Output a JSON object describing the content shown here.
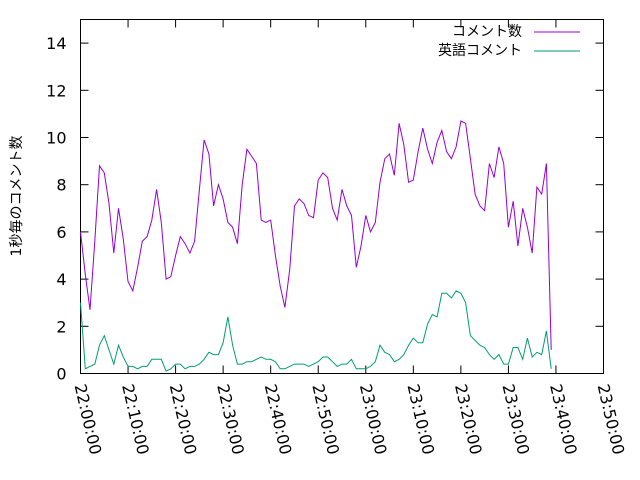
{
  "chart_data": {
    "type": "line",
    "ylabel": "1秒毎のコメント数",
    "xlabel": "",
    "ylim": [
      0,
      15
    ],
    "yticks": [
      0,
      2,
      4,
      6,
      8,
      10,
      12,
      14
    ],
    "xlim": [
      "22:00:00",
      "23:50:00"
    ],
    "xticks": [
      "22:00:00",
      "22:10:00",
      "22:20:00",
      "22:30:00",
      "22:40:00",
      "22:50:00",
      "23:00:00",
      "23:10:00",
      "23:20:00",
      "23:30:00",
      "23:40:00",
      "23:50:00"
    ],
    "grid": false,
    "legend": "top-right",
    "series": [
      {
        "name": "コメント数",
        "color": "#9400d3",
        "points": [
          [
            "22:00:00",
            6.0
          ],
          [
            "22:01:00",
            4.2
          ],
          [
            "22:02:00",
            2.7
          ],
          [
            "22:03:00",
            5.6
          ],
          [
            "22:04:00",
            8.8
          ],
          [
            "22:05:00",
            8.5
          ],
          [
            "22:06:00",
            7.2
          ],
          [
            "22:07:00",
            5.1
          ],
          [
            "22:08:00",
            7.0
          ],
          [
            "22:09:00",
            5.7
          ],
          [
            "22:10:00",
            3.9
          ],
          [
            "22:11:00",
            3.5
          ],
          [
            "22:12:00",
            4.5
          ],
          [
            "22:13:00",
            5.6
          ],
          [
            "22:14:00",
            5.8
          ],
          [
            "22:15:00",
            6.5
          ],
          [
            "22:16:00",
            7.8
          ],
          [
            "22:17:00",
            6.4
          ],
          [
            "22:18:00",
            4.0
          ],
          [
            "22:19:00",
            4.1
          ],
          [
            "22:20:00",
            5.0
          ],
          [
            "22:21:00",
            5.8
          ],
          [
            "22:22:00",
            5.5
          ],
          [
            "22:23:00",
            5.1
          ],
          [
            "22:24:00",
            5.6
          ],
          [
            "22:25:00",
            7.8
          ],
          [
            "22:26:00",
            9.9
          ],
          [
            "22:27:00",
            9.3
          ],
          [
            "22:28:00",
            7.1
          ],
          [
            "22:29:00",
            8.0
          ],
          [
            "22:30:00",
            7.4
          ],
          [
            "22:31:00",
            6.4
          ],
          [
            "22:32:00",
            6.2
          ],
          [
            "22:33:00",
            5.5
          ],
          [
            "22:34:00",
            8.0
          ],
          [
            "22:35:00",
            9.5
          ],
          [
            "22:36:00",
            9.2
          ],
          [
            "22:37:00",
            8.9
          ],
          [
            "22:38:00",
            6.5
          ],
          [
            "22:39:00",
            6.4
          ],
          [
            "22:40:00",
            6.5
          ],
          [
            "22:41:00",
            5.0
          ],
          [
            "22:42:00",
            3.7
          ],
          [
            "22:43:00",
            2.8
          ],
          [
            "22:44:00",
            4.4
          ],
          [
            "22:45:00",
            7.1
          ],
          [
            "22:46:00",
            7.4
          ],
          [
            "22:47:00",
            7.2
          ],
          [
            "22:48:00",
            6.7
          ],
          [
            "22:49:00",
            6.6
          ],
          [
            "22:50:00",
            8.2
          ],
          [
            "22:51:00",
            8.5
          ],
          [
            "22:52:00",
            8.3
          ],
          [
            "22:53:00",
            7.0
          ],
          [
            "22:54:00",
            6.5
          ],
          [
            "22:55:00",
            7.8
          ],
          [
            "22:56:00",
            7.1
          ],
          [
            "22:57:00",
            6.7
          ],
          [
            "22:58:00",
            4.5
          ],
          [
            "22:59:00",
            5.4
          ],
          [
            "23:00:00",
            6.7
          ],
          [
            "23:01:00",
            6.0
          ],
          [
            "23:02:00",
            6.4
          ],
          [
            "23:03:00",
            8.1
          ],
          [
            "23:04:00",
            9.1
          ],
          [
            "23:05:00",
            9.3
          ],
          [
            "23:06:00",
            8.4
          ],
          [
            "23:07:00",
            10.6
          ],
          [
            "23:08:00",
            9.7
          ],
          [
            "23:09:00",
            8.1
          ],
          [
            "23:10:00",
            8.2
          ],
          [
            "23:11:00",
            9.4
          ],
          [
            "23:12:00",
            10.4
          ],
          [
            "23:13:00",
            9.5
          ],
          [
            "23:14:00",
            8.9
          ],
          [
            "23:15:00",
            9.8
          ],
          [
            "23:16:00",
            10.3
          ],
          [
            "23:17:00",
            9.4
          ],
          [
            "23:18:00",
            9.1
          ],
          [
            "23:19:00",
            9.6
          ],
          [
            "23:20:00",
            10.7
          ],
          [
            "23:21:00",
            10.6
          ],
          [
            "23:22:00",
            9.1
          ],
          [
            "23:23:00",
            7.6
          ],
          [
            "23:24:00",
            7.1
          ],
          [
            "23:25:00",
            6.9
          ],
          [
            "23:26:00",
            8.9
          ],
          [
            "23:27:00",
            8.3
          ],
          [
            "23:28:00",
            9.6
          ],
          [
            "23:29:00",
            8.9
          ],
          [
            "23:30:00",
            6.2
          ],
          [
            "23:31:00",
            7.3
          ],
          [
            "23:32:00",
            5.4
          ],
          [
            "23:33:00",
            7.0
          ],
          [
            "23:34:00",
            6.2
          ],
          [
            "23:35:00",
            5.1
          ],
          [
            "23:36:00",
            7.9
          ],
          [
            "23:37:00",
            7.6
          ],
          [
            "23:38:00",
            8.9
          ],
          [
            "23:39:00",
            1.0
          ]
        ]
      },
      {
        "name": "英語コメント",
        "color": "#009e73",
        "points": [
          [
            "22:00:00",
            3.0
          ],
          [
            "22:01:00",
            0.2
          ],
          [
            "22:02:00",
            0.3
          ],
          [
            "22:03:00",
            0.4
          ],
          [
            "22:04:00",
            1.2
          ],
          [
            "22:05:00",
            1.6
          ],
          [
            "22:06:00",
            1.0
          ],
          [
            "22:07:00",
            0.4
          ],
          [
            "22:08:00",
            1.2
          ],
          [
            "22:09:00",
            0.7
          ],
          [
            "22:10:00",
            0.3
          ],
          [
            "22:11:00",
            0.3
          ],
          [
            "22:12:00",
            0.2
          ],
          [
            "22:13:00",
            0.3
          ],
          [
            "22:14:00",
            0.3
          ],
          [
            "22:15:00",
            0.6
          ],
          [
            "22:16:00",
            0.6
          ],
          [
            "22:17:00",
            0.6
          ],
          [
            "22:18:00",
            0.1
          ],
          [
            "22:19:00",
            0.2
          ],
          [
            "22:20:00",
            0.4
          ],
          [
            "22:21:00",
            0.4
          ],
          [
            "22:22:00",
            0.2
          ],
          [
            "22:23:00",
            0.3
          ],
          [
            "22:24:00",
            0.3
          ],
          [
            "22:25:00",
            0.4
          ],
          [
            "22:26:00",
            0.6
          ],
          [
            "22:27:00",
            0.9
          ],
          [
            "22:28:00",
            0.8
          ],
          [
            "22:29:00",
            0.8
          ],
          [
            "22:30:00",
            1.3
          ],
          [
            "22:31:00",
            2.4
          ],
          [
            "22:32:00",
            1.2
          ],
          [
            "22:33:00",
            0.4
          ],
          [
            "22:34:00",
            0.4
          ],
          [
            "22:35:00",
            0.5
          ],
          [
            "22:36:00",
            0.5
          ],
          [
            "22:37:00",
            0.6
          ],
          [
            "22:38:00",
            0.7
          ],
          [
            "22:39:00",
            0.6
          ],
          [
            "22:40:00",
            0.6
          ],
          [
            "22:41:00",
            0.5
          ],
          [
            "22:42:00",
            0.2
          ],
          [
            "22:43:00",
            0.2
          ],
          [
            "22:44:00",
            0.3
          ],
          [
            "22:45:00",
            0.4
          ],
          [
            "22:46:00",
            0.4
          ],
          [
            "22:47:00",
            0.4
          ],
          [
            "22:48:00",
            0.3
          ],
          [
            "22:49:00",
            0.4
          ],
          [
            "22:50:00",
            0.5
          ],
          [
            "22:51:00",
            0.7
          ],
          [
            "22:52:00",
            0.7
          ],
          [
            "22:53:00",
            0.5
          ],
          [
            "22:54:00",
            0.3
          ],
          [
            "22:55:00",
            0.4
          ],
          [
            "22:56:00",
            0.4
          ],
          [
            "22:57:00",
            0.6
          ],
          [
            "22:58:00",
            0.2
          ],
          [
            "22:59:00",
            0.2
          ],
          [
            "23:00:00",
            0.2
          ],
          [
            "23:01:00",
            0.3
          ],
          [
            "23:02:00",
            0.5
          ],
          [
            "23:03:00",
            1.2
          ],
          [
            "23:04:00",
            0.9
          ],
          [
            "23:05:00",
            0.8
          ],
          [
            "23:06:00",
            0.5
          ],
          [
            "23:07:00",
            0.6
          ],
          [
            "23:08:00",
            0.8
          ],
          [
            "23:09:00",
            1.2
          ],
          [
            "23:10:00",
            1.5
          ],
          [
            "23:11:00",
            1.3
          ],
          [
            "23:12:00",
            1.3
          ],
          [
            "23:13:00",
            2.1
          ],
          [
            "23:14:00",
            2.5
          ],
          [
            "23:15:00",
            2.4
          ],
          [
            "23:16:00",
            3.4
          ],
          [
            "23:17:00",
            3.4
          ],
          [
            "23:18:00",
            3.2
          ],
          [
            "23:19:00",
            3.5
          ],
          [
            "23:20:00",
            3.4
          ],
          [
            "23:21:00",
            3.0
          ],
          [
            "23:22:00",
            1.6
          ],
          [
            "23:23:00",
            1.4
          ],
          [
            "23:24:00",
            1.2
          ],
          [
            "23:25:00",
            1.1
          ],
          [
            "23:26:00",
            0.8
          ],
          [
            "23:27:00",
            0.6
          ],
          [
            "23:28:00",
            0.8
          ],
          [
            "23:29:00",
            0.4
          ],
          [
            "23:30:00",
            0.4
          ],
          [
            "23:31:00",
            1.1
          ],
          [
            "23:32:00",
            1.1
          ],
          [
            "23:33:00",
            0.6
          ],
          [
            "23:34:00",
            1.5
          ],
          [
            "23:35:00",
            0.7
          ],
          [
            "23:36:00",
            0.9
          ],
          [
            "23:37:00",
            0.8
          ],
          [
            "23:38:00",
            1.8
          ],
          [
            "23:39:00",
            0.2
          ]
        ]
      }
    ]
  }
}
